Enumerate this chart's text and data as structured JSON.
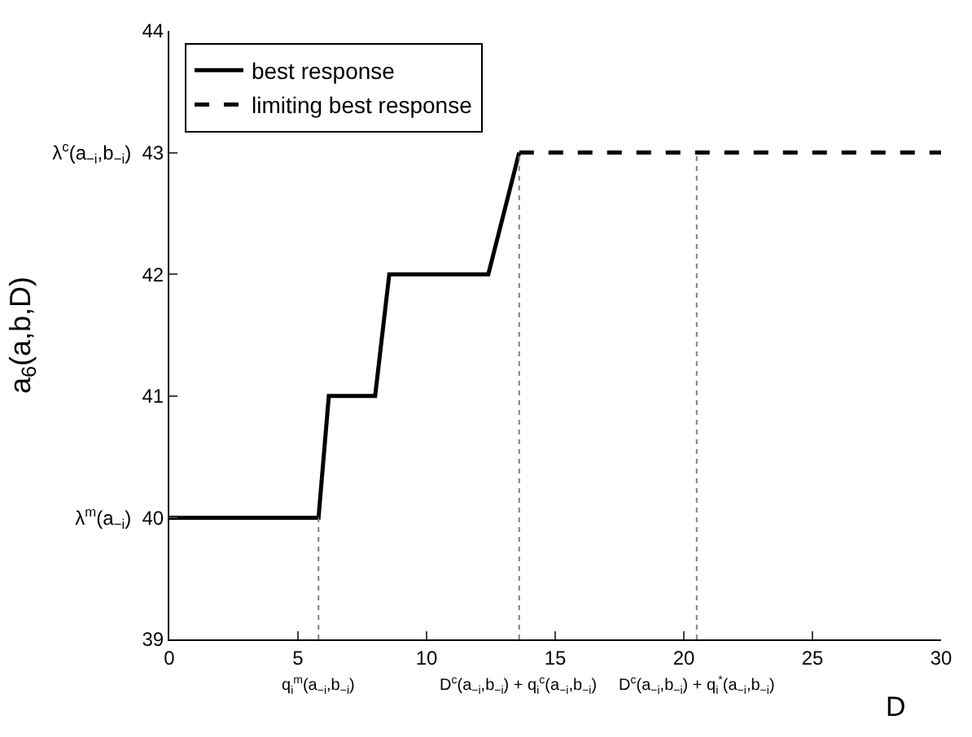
{
  "chart_data": {
    "type": "line",
    "xlabel": "D",
    "ylabel": "a$_{6}$(a,b,D)",
    "series": [
      {
        "name": "best response",
        "color": "#000000",
        "line_style": "solid",
        "x": [
          0,
          5.8,
          6.2,
          8.0,
          8.55,
          12.4,
          13.6
        ],
        "values": [
          40,
          40,
          41,
          41,
          42,
          42,
          43
        ]
      },
      {
        "name": "limiting best response",
        "color": "#000000",
        "line_style": "dashed",
        "x": [
          13.6,
          30
        ],
        "values": [
          43,
          43
        ]
      }
    ],
    "xlim": [
      0,
      30
    ],
    "xticks": [
      0,
      5,
      10,
      15,
      20,
      25,
      30
    ],
    "ylim": [
      39,
      44
    ],
    "yticks": [
      39,
      {
        "value": 40,
        "label": "λ$^{m}$(a$_{−i}$)  40"
      },
      41,
      42,
      {
        "value": 43,
        "label": "λ$^{c}$(a$_{−i}$,b$_{−i}$)  43"
      },
      44
    ],
    "ref_lines": [
      {
        "axis": "x",
        "value": 5.8,
        "label": "q$_{i}$$^{m}$(a$_{−i}$,b$_{−i}$)",
        "color": "#808080",
        "line_style": "dotted"
      },
      {
        "axis": "x",
        "value": 13.6,
        "label": "D$^{c}$(a$_{−i}$,b$_{−i}$) + q$_{i}$$^{c}$(a$_{−i}$,b$_{−i}$)",
        "color": "#808080",
        "line_style": "dotted"
      },
      {
        "axis": "x",
        "value": 20.5,
        "label": "D$^{c}$(a$_{−i}$,b$_{−i}$) + q$_{i}$$^{*}$(a$_{−i}$,b$_{−i}$)",
        "color": "#808080",
        "line_style": "dotted"
      }
    ],
    "legend": "top left",
    "marker": "none"
  }
}
